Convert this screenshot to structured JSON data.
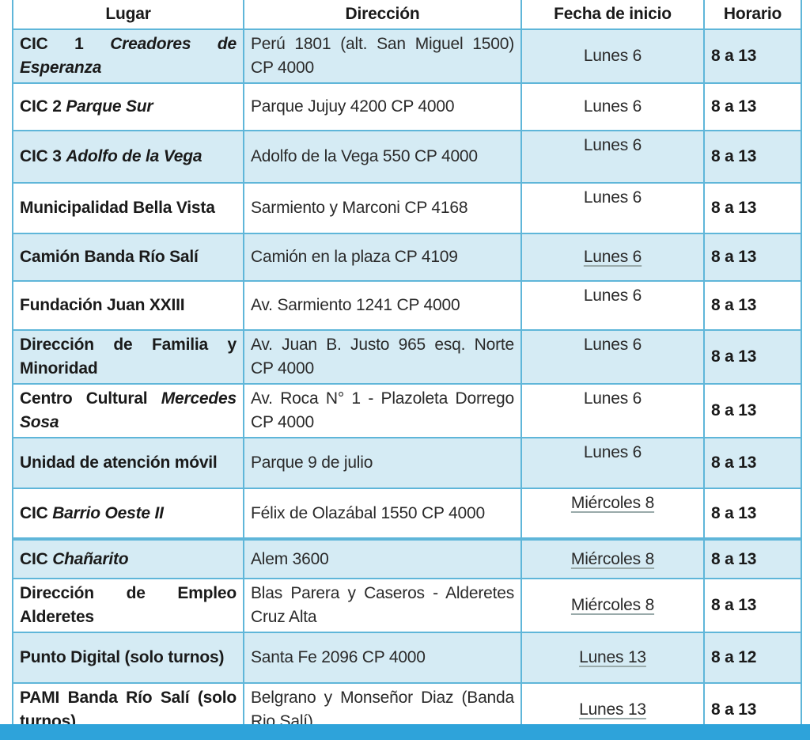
{
  "table": {
    "headers": [
      "Lugar",
      "Dirección",
      "Fecha de inicio",
      "Horario"
    ],
    "rows": [
      {
        "lugar": [
          {
            "t": "CIC 1 ",
            "i": false
          },
          {
            "t": "Creadores de Esperanza",
            "i": true
          }
        ],
        "direccion": "Perú 1801 (alt. San Miguel 1500) CP 4000",
        "fecha": "Lunes 6",
        "horario": "8 a 13"
      },
      {
        "lugar": [
          {
            "t": "CIC 2 ",
            "i": false
          },
          {
            "t": "Parque Sur",
            "i": true
          }
        ],
        "direccion": "Parque Jujuy 4200 CP 4000",
        "fecha": "Lunes 6",
        "horario": "8 a 13"
      },
      {
        "lugar": [
          {
            "t": "CIC 3 ",
            "i": false
          },
          {
            "t": "Adolfo de la Vega",
            "i": true
          }
        ],
        "direccion": "Adolfo de la Vega 550 CP 4000",
        "fecha": "Lunes 6",
        "horario": "8 a 13"
      },
      {
        "lugar": [
          {
            "t": "Municipalidad Bella Vista",
            "i": false
          }
        ],
        "direccion": "Sarmiento y Marconi CP 4168",
        "fecha": "Lunes 6",
        "horario": "8 a 13"
      },
      {
        "lugar": [
          {
            "t": "Camión Banda Río Salí",
            "i": false
          }
        ],
        "direccion": "Camión en la plaza CP 4109",
        "fecha": "Lunes 6",
        "horario": "8 a 13"
      },
      {
        "lugar": [
          {
            "t": "Fundación Juan XXIII",
            "i": false
          }
        ],
        "direccion": "Av. Sarmiento 1241 CP 4000",
        "fecha": "Lunes 6",
        "horario": "8 a 13"
      },
      {
        "lugar": [
          {
            "t": "Dirección de Familia y Minoridad",
            "i": false
          }
        ],
        "direccion": "Av. Juan B. Justo 965 esq. Norte CP 4000",
        "fecha": "Lunes 6",
        "horario": "8 a 13"
      },
      {
        "lugar": [
          {
            "t": "Centro Cultural ",
            "i": false
          },
          {
            "t": "Mercedes Sosa",
            "i": true
          }
        ],
        "direccion": "Av. Roca N° 1 - Plazoleta Dorrego CP 4000",
        "fecha": "Lunes 6",
        "horario": "8 a 13"
      },
      {
        "lugar": [
          {
            "t": "Unidad de atención móvil",
            "i": false
          }
        ],
        "direccion": "Parque 9 de julio",
        "fecha": "Lunes 6",
        "horario": "8 a 13"
      },
      {
        "lugar": [
          {
            "t": "CIC ",
            "i": false
          },
          {
            "t": "Barrio Oeste II",
            "i": true
          }
        ],
        "direccion": "Félix de Olazábal 1550 CP 4000",
        "fecha": "Miércoles 8",
        "horario": "8 a 13"
      },
      {
        "lugar": [
          {
            "t": "CIC ",
            "i": false
          },
          {
            "t": "Chañarito",
            "i": true
          }
        ],
        "direccion": "Alem 3600",
        "fecha": "Miércoles 8",
        "horario": "8 a 13"
      },
      {
        "lugar": [
          {
            "t": "Dirección de Empleo Alderetes",
            "i": false
          }
        ],
        "direccion": "Blas Parera y Caseros - Alderetes Cruz Alta",
        "fecha": "Miércoles 8",
        "horario": "8 a 13"
      },
      {
        "lugar": [
          {
            "t": "Punto Digital (solo turnos)",
            "i": false
          }
        ],
        "direccion": "Santa Fe 2096 CP 4000",
        "fecha": "Lunes 13",
        "horario": "8 a 12"
      },
      {
        "lugar": [
          {
            "t": "PAMI Banda Río Salí (solo turnos)",
            "i": false
          }
        ],
        "direccion": "Belgrano y Monseñor Diaz (Banda Rio Salí)",
        "fecha": "Lunes 13",
        "horario": "8 a 13"
      }
    ]
  },
  "colors": {
    "border": "#5fb6d9",
    "row_alt": "#d5ebf4",
    "footer_bar": "#2ea3da"
  }
}
